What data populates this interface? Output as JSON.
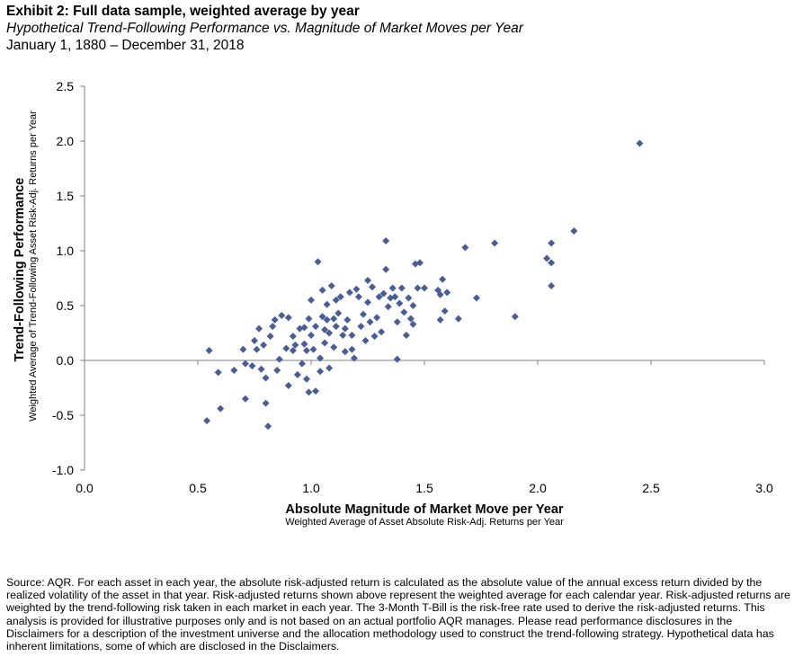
{
  "header": {
    "title": "Exhibit 2: Full data sample, weighted average by year",
    "subtitle": "Hypothetical Trend-Following Performance vs. Magnitude of Market Moves per Year",
    "date_range": "January 1, 1880 – December 31, 2018"
  },
  "footnote": "Source: AQR. For each asset in each year, the absolute risk-adjusted return is calculated as the absolute value of the annual excess return divided by the realized volatility of the asset in that year. Risk-adjusted returns shown above represent the weighted average for each calendar year. Risk-adjusted returns are weighted by the trend-following risk taken in each market in each year. The 3-Month T-Bill is the risk-free rate used to derive the risk-adjusted returns. This analysis is provided for illustrative purposes only and is not based on an actual portfolio AQR manages. Please read performance disclosures in the Disclaimers for a description of the investment universe and the allocation methodology used to construct the trend-following strategy. Hypothetical data has inherent limitations, some of which are disclosed in the Disclaimers.",
  "chart_data": {
    "type": "scatter",
    "xlabel": "Absolute Magnitude of Market Move per Year",
    "xlabel_sub": "Weighted Average of Asset Absolute Risk-Adj. Returns per Year",
    "ylabel": "Trend-Following Performance",
    "ylabel_sub": "Weighted Average of Trend-Following Asset Risk-Adj. Returns per Year",
    "xlim": [
      0.0,
      3.0
    ],
    "ylim": [
      -1.0,
      2.5
    ],
    "xticks": [
      "0.0",
      "0.5",
      "1.0",
      "1.5",
      "2.0",
      "2.5",
      "3.0"
    ],
    "yticks": [
      "2.5",
      "2.0",
      "1.5",
      "1.0",
      "0.5",
      "0.0",
      "-0.5",
      "-1.0"
    ],
    "grid": false,
    "marker_color": "#4a5e96",
    "points": [
      [
        0.54,
        -0.55
      ],
      [
        0.55,
        0.09
      ],
      [
        0.59,
        -0.11
      ],
      [
        0.6,
        -0.44
      ],
      [
        0.66,
        -0.09
      ],
      [
        0.7,
        0.1
      ],
      [
        0.71,
        -0.35
      ],
      [
        0.71,
        -0.03
      ],
      [
        0.74,
        -0.05
      ],
      [
        0.75,
        0.18
      ],
      [
        0.76,
        0.1
      ],
      [
        0.77,
        0.29
      ],
      [
        0.78,
        -0.08
      ],
      [
        0.79,
        0.14
      ],
      [
        0.8,
        -0.16
      ],
      [
        0.8,
        -0.39
      ],
      [
        0.81,
        -0.6
      ],
      [
        0.82,
        0.22
      ],
      [
        0.83,
        0.31
      ],
      [
        0.84,
        0.37
      ],
      [
        0.85,
        -0.09
      ],
      [
        0.86,
        0.01
      ],
      [
        0.87,
        0.41
      ],
      [
        0.89,
        0.11
      ],
      [
        0.9,
        0.39
      ],
      [
        0.9,
        -0.23
      ],
      [
        0.92,
        0.22
      ],
      [
        0.92,
        0.09
      ],
      [
        0.93,
        0.14
      ],
      [
        0.94,
        -0.13
      ],
      [
        0.95,
        0.29
      ],
      [
        0.96,
        -0.03
      ],
      [
        0.97,
        0.3
      ],
      [
        0.97,
        0.15
      ],
      [
        0.98,
        -0.17
      ],
      [
        0.98,
        0.09
      ],
      [
        0.99,
        -0.29
      ],
      [
        0.99,
        0.38
      ],
      [
        1.0,
        0.55
      ],
      [
        1.0,
        0.23
      ],
      [
        1.01,
        0.1
      ],
      [
        1.02,
        -0.28
      ],
      [
        1.02,
        0.31
      ],
      [
        1.03,
        0.9
      ],
      [
        1.04,
        0.02
      ],
      [
        1.04,
        -0.1
      ],
      [
        1.05,
        0.4
      ],
      [
        1.05,
        0.64
      ],
      [
        1.06,
        0.16
      ],
      [
        1.06,
        0.28
      ],
      [
        1.07,
        0.37
      ],
      [
        1.07,
        0.51
      ],
      [
        1.08,
        0.25
      ],
      [
        1.08,
        -0.07
      ],
      [
        1.09,
        0.68
      ],
      [
        1.1,
        0.38
      ],
      [
        1.1,
        0.12
      ],
      [
        1.11,
        0.55
      ],
      [
        1.11,
        0.31
      ],
      [
        1.12,
        0.43
      ],
      [
        1.13,
        0.58
      ],
      [
        1.14,
        0.23
      ],
      [
        1.15,
        0.08
      ],
      [
        1.15,
        0.29
      ],
      [
        1.16,
        0.37
      ],
      [
        1.17,
        0.62
      ],
      [
        1.18,
        0.1
      ],
      [
        1.18,
        0.23
      ],
      [
        1.19,
        0.02
      ],
      [
        1.2,
        0.65
      ],
      [
        1.21,
        0.58
      ],
      [
        1.22,
        0.31
      ],
      [
        1.23,
        0.42
      ],
      [
        1.24,
        0.18
      ],
      [
        1.25,
        0.73
      ],
      [
        1.25,
        0.53
      ],
      [
        1.26,
        0.35
      ],
      [
        1.27,
        0.67
      ],
      [
        1.28,
        0.22
      ],
      [
        1.29,
        0.39
      ],
      [
        1.3,
        0.58
      ],
      [
        1.31,
        0.26
      ],
      [
        1.32,
        0.61
      ],
      [
        1.33,
        0.83
      ],
      [
        1.33,
        1.09
      ],
      [
        1.34,
        0.49
      ],
      [
        1.35,
        0.57
      ],
      [
        1.36,
        0.66
      ],
      [
        1.37,
        0.58
      ],
      [
        1.38,
        0.35
      ],
      [
        1.38,
        0.01
      ],
      [
        1.39,
        0.52
      ],
      [
        1.4,
        0.66
      ],
      [
        1.41,
        0.44
      ],
      [
        1.42,
        0.23
      ],
      [
        1.43,
        0.57
      ],
      [
        1.44,
        0.38
      ],
      [
        1.45,
        0.5
      ],
      [
        1.45,
        0.33
      ],
      [
        1.46,
        0.88
      ],
      [
        1.47,
        0.66
      ],
      [
        1.48,
        0.89
      ],
      [
        1.5,
        0.66
      ],
      [
        1.56,
        0.64
      ],
      [
        1.57,
        0.6
      ],
      [
        1.58,
        0.74
      ],
      [
        1.59,
        0.45
      ],
      [
        1.6,
        0.62
      ],
      [
        1.57,
        0.37
      ],
      [
        1.65,
        0.38
      ],
      [
        1.68,
        1.03
      ],
      [
        1.73,
        0.57
      ],
      [
        1.81,
        1.07
      ],
      [
        1.9,
        0.4
      ],
      [
        2.04,
        0.93
      ],
      [
        2.06,
        1.07
      ],
      [
        2.06,
        0.89
      ],
      [
        2.06,
        0.68
      ],
      [
        2.16,
        1.18
      ],
      [
        2.45,
        1.98
      ]
    ]
  }
}
